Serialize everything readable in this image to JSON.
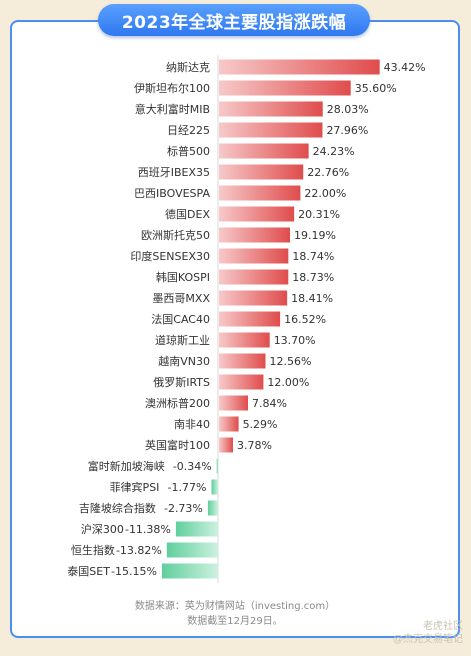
{
  "title": "2023年全球主要股指涨跌幅",
  "chart_data": {
    "type": "bar",
    "orientation": "horizontal",
    "categories": [
      "纳斯达克",
      "伊斯坦布尔100",
      "意大利富时MIB",
      "日经225",
      "标普500",
      "西班牙IBEX35",
      "巴西IBOVESPA",
      "德国DEX",
      "欧洲斯托克50",
      "印度SENSEX30",
      "韩国KOSPI",
      "墨西哥MXX",
      "法国CAC40",
      "道琼斯工业",
      "越南VN30",
      "俄罗斯IRTS",
      "澳洲标普200",
      "南非40",
      "英国富时100",
      "富时新加坡海峡",
      "菲律宾PSI",
      "吉隆坡综合指数",
      "沪深300",
      "恒生指数",
      "泰国SET"
    ],
    "values": [
      43.42,
      35.6,
      28.03,
      27.96,
      24.23,
      22.76,
      22.0,
      20.31,
      19.19,
      18.74,
      18.73,
      18.41,
      16.52,
      13.7,
      12.56,
      12.0,
      7.84,
      5.29,
      3.78,
      -0.34,
      -1.77,
      -2.73,
      -11.38,
      -13.82,
      -15.15
    ],
    "value_labels": [
      "43.42%",
      "35.60%",
      "28.03%",
      "27.96%",
      "24.23%",
      "22.76%",
      "22.00%",
      "20.31%",
      "19.19%",
      "18.74%",
      "18.73%",
      "18.41%",
      "16.52%",
      "13.70%",
      "12.56%",
      "12.00%",
      "7.84%",
      "5.29%",
      "3.78%",
      "-0.34%",
      "-1.77%",
      "-2.73%",
      "-11.38%",
      "-13.82%",
      "-15.15%"
    ],
    "positive_color": "#e25555",
    "negative_color": "#6fd3a8",
    "grid": false,
    "legend": "none"
  },
  "footer": {
    "source": "数据来源：英为财情网站（investing.com）",
    "date": "数据截至12月29日。"
  },
  "watermark": {
    "community": "老虎社区",
    "user": "@杰克交易笔记"
  }
}
